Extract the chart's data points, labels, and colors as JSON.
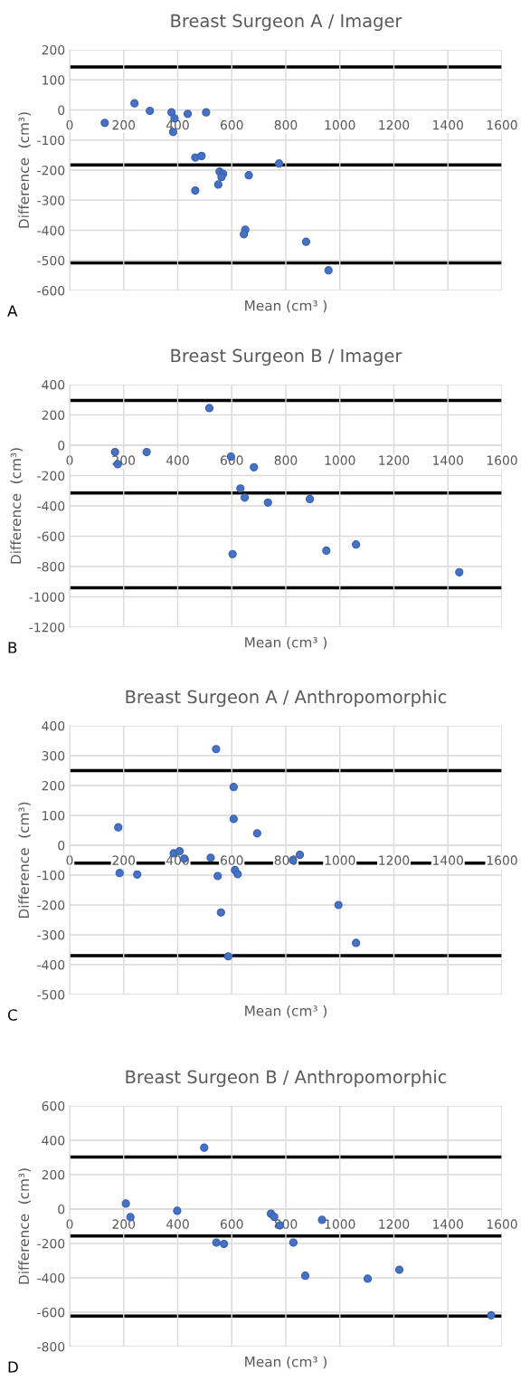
{
  "chart_data": [
    {
      "type": "scatter",
      "title": "Breast Surgeon A / Imager",
      "xlabel": "Mean (cm³ )",
      "ylabel": "Difference  (cm³)",
      "annotations": [
        "A"
      ],
      "color": "#4472c4",
      "marker": "circle",
      "grid": true,
      "legend": false,
      "x": [
        130,
        240,
        297,
        377,
        388,
        383,
        437,
        505,
        465,
        488,
        465,
        555,
        568,
        562,
        550,
        663,
        775,
        650,
        645,
        875,
        958
      ],
      "values": [
        -43,
        22,
        -3,
        -8,
        -28,
        -73,
        -13,
        -8,
        -158,
        -153,
        -268,
        -205,
        -212,
        -223,
        -248,
        -217,
        -178,
        -398,
        -413,
        -438,
        -533
      ],
      "xlim": [
        0,
        1600
      ],
      "xticks": [
        0,
        200,
        400,
        600,
        800,
        1000,
        1200,
        1400,
        1600
      ],
      "ylim": [
        -600,
        200
      ],
      "yticks": [
        -600,
        -500,
        -400,
        -300,
        -200,
        -100,
        0,
        100,
        200
      ],
      "ref_lines": [
        {
          "axis": "y",
          "value": 143,
          "color": "#000000"
        },
        {
          "axis": "y",
          "value": -183,
          "color": "#000000"
        },
        {
          "axis": "y",
          "value": -508,
          "color": "#000000"
        }
      ]
    },
    {
      "type": "scatter",
      "title": "Breast Surgeon B / Imager",
      "xlabel": "Mean (cm³ )",
      "ylabel": "Difference  (cm³)",
      "annotations": [
        "B"
      ],
      "color": "#4472c4",
      "marker": "circle",
      "grid": true,
      "legend": false,
      "x": [
        168,
        178,
        285,
        517,
        597,
        603,
        632,
        648,
        682,
        734,
        889,
        950,
        1060,
        1442
      ],
      "values": [
        -45,
        -125,
        -45,
        245,
        -75,
        -718,
        -285,
        -345,
        -145,
        -378,
        -355,
        -695,
        -655,
        -838
      ],
      "xlim": [
        0,
        1600
      ],
      "xticks": [
        0,
        200,
        400,
        600,
        800,
        1000,
        1200,
        1400,
        1600
      ],
      "ylim": [
        -1200,
        400
      ],
      "yticks": [
        -1200,
        -1000,
        -800,
        -600,
        -400,
        -200,
        0,
        200,
        400
      ],
      "ref_lines": [
        {
          "axis": "y",
          "value": 295,
          "color": "#000000"
        },
        {
          "axis": "y",
          "value": -315,
          "color": "#000000"
        },
        {
          "axis": "y",
          "value": -940,
          "color": "#000000"
        }
      ]
    },
    {
      "type": "scatter",
      "title": "Breast Surgeon A / Anthropomorphic",
      "xlabel": "Mean (cm³ )",
      "ylabel": "Difference  (cm³)",
      "annotations": [
        "C"
      ],
      "color": "#4472c4",
      "marker": "circle",
      "grid": true,
      "legend": false,
      "x": [
        180,
        185,
        250,
        385,
        407,
        424,
        522,
        542,
        548,
        560,
        587,
        607,
        607,
        612,
        622,
        694,
        826,
        852,
        995,
        1060
      ],
      "values": [
        60,
        -93,
        -98,
        -27,
        -20,
        -45,
        -42,
        322,
        -103,
        -225,
        -372,
        195,
        88,
        -83,
        -97,
        40,
        -50,
        -32,
        -200,
        -327
      ],
      "xlim": [
        0,
        1600
      ],
      "xticks": [
        0,
        200,
        400,
        600,
        800,
        1000,
        1200,
        1400,
        1600
      ],
      "ylim": [
        -500,
        400
      ],
      "yticks": [
        -500,
        -400,
        -300,
        -200,
        -100,
        0,
        100,
        200,
        300,
        400
      ],
      "ref_lines": [
        {
          "axis": "y",
          "value": 250,
          "color": "#000000"
        },
        {
          "axis": "y",
          "value": -60,
          "color": "#000000"
        },
        {
          "axis": "y",
          "value": -370,
          "color": "#000000"
        }
      ]
    },
    {
      "type": "scatter",
      "title": "Breast Surgeon B / Anthropomorphic",
      "xlabel": "Mean (cm³ )",
      "ylabel": "Difference  (cm³)",
      "annotations": [
        "D"
      ],
      "color": "#4472c4",
      "marker": "circle",
      "grid": true,
      "legend": false,
      "x": [
        208,
        225,
        398,
        498,
        543,
        571,
        745,
        757,
        778,
        828,
        872,
        934,
        1103,
        1220,
        1560
      ],
      "values": [
        32,
        -47,
        -10,
        357,
        -195,
        -203,
        -27,
        -45,
        -95,
        -195,
        -388,
        -63,
        -405,
        -353,
        -618
      ],
      "xlim": [
        0,
        1600
      ],
      "xticks": [
        0,
        200,
        400,
        600,
        800,
        1000,
        1200,
        1400,
        1600
      ],
      "ylim": [
        -800,
        600
      ],
      "yticks": [
        -800,
        -600,
        -400,
        -200,
        0,
        200,
        400,
        600
      ],
      "ref_lines": [
        {
          "axis": "y",
          "value": 303,
          "color": "#000000"
        },
        {
          "axis": "y",
          "value": -157,
          "color": "#000000"
        },
        {
          "axis": "y",
          "value": -622,
          "color": "#000000"
        }
      ]
    }
  ]
}
